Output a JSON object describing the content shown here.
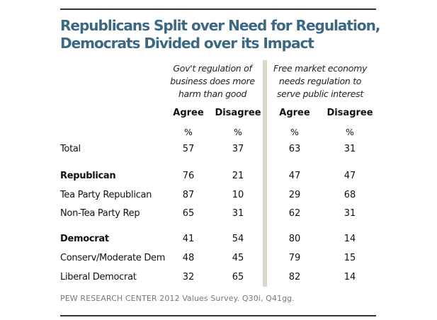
{
  "chart_data": {
    "type": "table",
    "title": "Republicans Split over Need for Regulation, Democrats Divided over its Impact",
    "question_groups": [
      {
        "label": "Gov't regulation of business does more harm than good",
        "columns": [
          "Agree",
          "Disagree"
        ]
      },
      {
        "label": "Free market economy needs regulation to serve public interest",
        "columns": [
          "Agree",
          "Disagree"
        ]
      }
    ],
    "unit_row": [
      "%",
      "%",
      "%",
      "%"
    ],
    "rows": [
      {
        "label": "Total",
        "bold": false,
        "values": [
          57,
          37,
          63,
          31
        ]
      },
      {
        "label": "Republican",
        "bold": true,
        "values": [
          76,
          21,
          47,
          47
        ]
      },
      {
        "label": "Tea Party Republican",
        "bold": false,
        "values": [
          87,
          10,
          29,
          68
        ]
      },
      {
        "label": "Non-Tea Party Rep",
        "bold": false,
        "values": [
          65,
          31,
          62,
          31
        ]
      },
      {
        "label": "Democrat",
        "bold": true,
        "values": [
          41,
          54,
          80,
          14
        ]
      },
      {
        "label": "Conserv/Moderate Dem",
        "bold": false,
        "values": [
          48,
          45,
          79,
          15
        ]
      },
      {
        "label": "Liberal Democrat",
        "bold": false,
        "values": [
          32,
          65,
          82,
          14
        ]
      }
    ],
    "source_note": "PEW RESEARCH  CENTER 2012 Values Survey. Q30i, Q41gg.",
    "colors": {
      "title": "#3d6883",
      "divider": "#dcd6c6",
      "note": "#777777"
    }
  }
}
